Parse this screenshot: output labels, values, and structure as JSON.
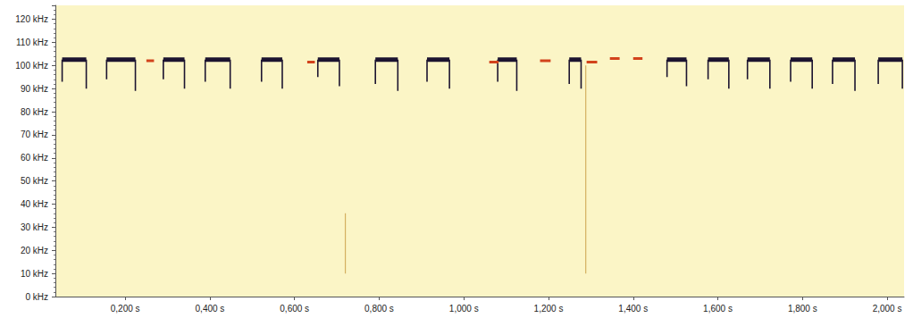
{
  "chart_data": {
    "type": "spectrogram",
    "xlim": [
      0.035,
      2.04
    ],
    "ylim": [
      0,
      126
    ],
    "xticks": [
      {
        "value": 0.2,
        "label": "0,200 s"
      },
      {
        "value": 0.4,
        "label": "0,400 s"
      },
      {
        "value": 0.6,
        "label": "0,600 s"
      },
      {
        "value": 0.8,
        "label": "0,800 s"
      },
      {
        "value": 1.0,
        "label": "1,000 s"
      },
      {
        "value": 1.2,
        "label": "1,200 s"
      },
      {
        "value": 1.4,
        "label": "1,400 s"
      },
      {
        "value": 1.6,
        "label": "1,600 s"
      },
      {
        "value": 1.8,
        "label": "1,800 s"
      },
      {
        "value": 2.0,
        "label": "2,000 s"
      }
    ],
    "yticks": [
      {
        "value": 0,
        "label": "0 kHz"
      },
      {
        "value": 10,
        "label": "10 kHz"
      },
      {
        "value": 20,
        "label": "20 kHz"
      },
      {
        "value": 30,
        "label": "30 kHz"
      },
      {
        "value": 40,
        "label": "40 kHz"
      },
      {
        "value": 50,
        "label": "50 kHz"
      },
      {
        "value": 60,
        "label": "60 kHz"
      },
      {
        "value": 70,
        "label": "70 kHz"
      },
      {
        "value": 80,
        "label": "80 kHz"
      },
      {
        "value": 90,
        "label": "90 kHz"
      },
      {
        "value": 100,
        "label": "100 kHz"
      },
      {
        "value": 110,
        "label": "110 kHz"
      },
      {
        "value": 120,
        "label": "120 kHz"
      }
    ],
    "grid": false,
    "calls": {
      "color": "#1c1430",
      "start": [
        0.051,
        0.156,
        0.29,
        0.389,
        0.522,
        0.655,
        0.791,
        0.913,
        1.08,
        1.249,
        1.48,
        1.577,
        1.67,
        1.772,
        1.871,
        1.979
      ],
      "end": [
        0.108,
        0.224,
        0.34,
        0.448,
        0.571,
        0.706,
        0.844,
        0.966,
        1.125,
        1.277,
        1.526,
        1.626,
        1.723,
        1.823,
        1.924,
        2.036
      ],
      "cf": [
        102.5,
        102.5,
        102.5,
        102.5,
        102.5,
        102.5,
        102.5,
        102.5,
        102.5,
        102.5,
        102.5,
        102.5,
        102.5,
        102.5,
        102.5,
        102.5
      ],
      "fm_start": [
        93,
        94,
        94,
        93,
        93,
        95,
        92,
        93,
        93,
        92,
        95,
        94,
        94,
        93,
        92,
        92
      ],
      "fm_end": [
        90,
        89,
        90,
        90,
        90,
        91,
        89,
        90,
        89,
        90,
        91,
        90,
        90,
        90,
        89,
        90
      ]
    },
    "fragments": {
      "color": "#d2431c",
      "start": [
        0.25,
        0.63,
        1.06,
        1.18,
        1.29,
        1.345,
        1.4
      ],
      "end": [
        0.268,
        0.648,
        1.082,
        1.205,
        1.315,
        1.368,
        1.422
      ],
      "freq": [
        102,
        101.5,
        101.5,
        102,
        101.5,
        103,
        103
      ]
    },
    "clicks": {
      "color": "#d4b060",
      "time": [
        0.72,
        1.288
      ],
      "low": [
        10,
        10
      ],
      "high": [
        36,
        100
      ]
    }
  }
}
